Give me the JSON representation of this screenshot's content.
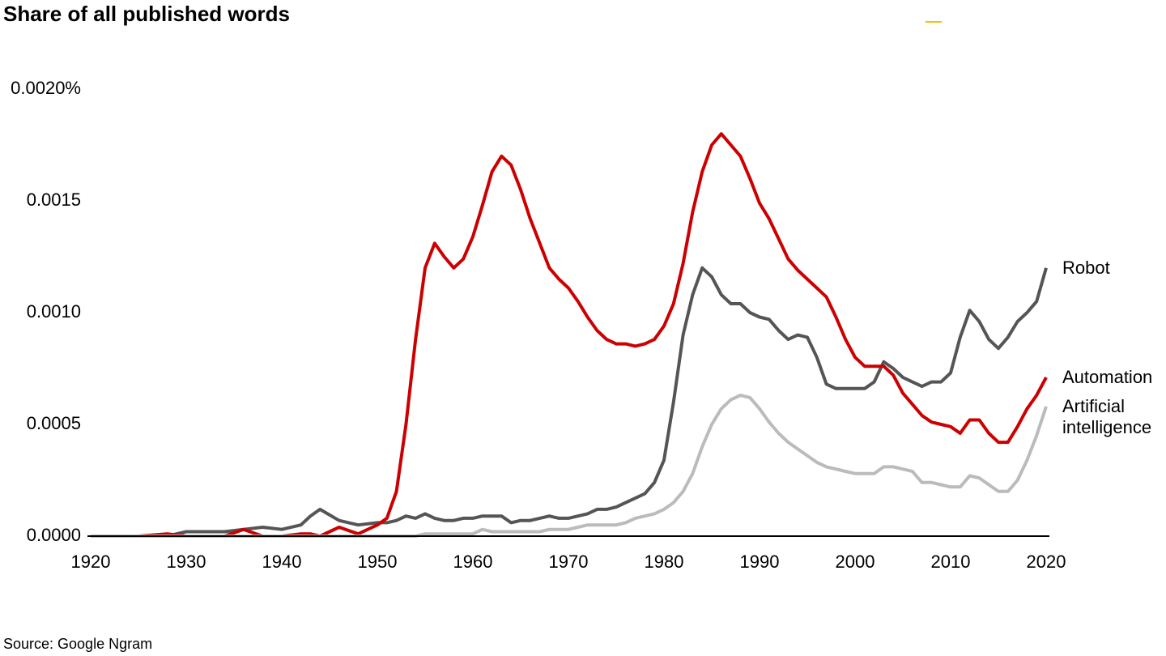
{
  "chart_data": {
    "type": "line",
    "title": "Share of all published words",
    "source": "Source: Google Ngram",
    "xlim": [
      1920,
      2020
    ],
    "ylim": [
      0,
      0.002
    ],
    "xticks": [
      1920,
      1930,
      1940,
      1950,
      1960,
      1970,
      1980,
      1990,
      2000,
      2010,
      2020
    ],
    "yticks": [
      {
        "value": 0,
        "label": "0.0000"
      },
      0.0005,
      {
        "value": 0.001,
        "label": "0.0010"
      },
      0.0015,
      {
        "value": 0.002,
        "label": "0.0020%"
      }
    ],
    "grid": false,
    "x": [
      1920,
      1925,
      1928,
      1930,
      1932,
      1934,
      1936,
      1938,
      1940,
      1942,
      1943,
      1944,
      1946,
      1948,
      1950,
      1951,
      1952,
      1953,
      1954,
      1955,
      1956,
      1957,
      1958,
      1959,
      1960,
      1961,
      1962,
      1963,
      1964,
      1965,
      1966,
      1967,
      1968,
      1969,
      1970,
      1971,
      1972,
      1973,
      1974,
      1975,
      1976,
      1977,
      1978,
      1979,
      1980,
      1981,
      1982,
      1983,
      1984,
      1985,
      1986,
      1987,
      1988,
      1989,
      1990,
      1991,
      1992,
      1993,
      1994,
      1995,
      1996,
      1997,
      1998,
      1999,
      2000,
      2001,
      2002,
      2003,
      2004,
      2005,
      2006,
      2007,
      2008,
      2009,
      2010,
      2011,
      2012,
      2013,
      2014,
      2015,
      2016,
      2017,
      2018,
      2019,
      2020
    ],
    "series": [
      {
        "name": "Robot",
        "color": "#555555",
        "values": [
          0,
          0,
          0,
          2e-05,
          2e-05,
          2e-05,
          3e-05,
          4e-05,
          3e-05,
          5e-05,
          9e-05,
          0.00012,
          7e-05,
          5e-05,
          6e-05,
          6e-05,
          7e-05,
          9e-05,
          8e-05,
          0.0001,
          8e-05,
          7e-05,
          7e-05,
          8e-05,
          8e-05,
          9e-05,
          9e-05,
          9e-05,
          6e-05,
          7e-05,
          7e-05,
          8e-05,
          9e-05,
          8e-05,
          8e-05,
          9e-05,
          0.0001,
          0.00012,
          0.00012,
          0.00013,
          0.00015,
          0.00017,
          0.00019,
          0.00024,
          0.00034,
          0.0006,
          0.0009,
          0.00108,
          0.0012,
          0.00116,
          0.00108,
          0.00104,
          0.00104,
          0.001,
          0.00098,
          0.00097,
          0.00092,
          0.00088,
          0.0009,
          0.00089,
          0.0008,
          0.00068,
          0.00066,
          0.00066,
          0.00066,
          0.00066,
          0.00069,
          0.00078,
          0.00075,
          0.00071,
          0.00069,
          0.00067,
          0.00069,
          0.00069,
          0.00073,
          0.00089,
          0.00101,
          0.00096,
          0.00088,
          0.00084,
          0.00089,
          0.00096,
          0.001,
          0.00105,
          0.0012
        ]
      },
      {
        "name": "Automation",
        "color": "#cc0000",
        "values": [
          0,
          0,
          1e-05,
          0,
          0,
          0,
          3e-05,
          0,
          0,
          1e-05,
          1e-05,
          0,
          4e-05,
          1e-05,
          5e-05,
          8e-05,
          0.0002,
          0.0005,
          0.00088,
          0.0012,
          0.00131,
          0.00125,
          0.0012,
          0.00124,
          0.00134,
          0.00148,
          0.00163,
          0.0017,
          0.00166,
          0.00155,
          0.00142,
          0.00131,
          0.0012,
          0.00115,
          0.00111,
          0.00105,
          0.00098,
          0.00092,
          0.00088,
          0.00086,
          0.00086,
          0.00085,
          0.00086,
          0.00088,
          0.00094,
          0.00104,
          0.00122,
          0.00145,
          0.00163,
          0.00175,
          0.0018,
          0.00175,
          0.0017,
          0.0016,
          0.00149,
          0.00142,
          0.00133,
          0.00124,
          0.00119,
          0.00115,
          0.00111,
          0.00107,
          0.00098,
          0.00088,
          0.0008,
          0.00076,
          0.00076,
          0.00076,
          0.00072,
          0.00064,
          0.00059,
          0.00054,
          0.00051,
          0.0005,
          0.00049,
          0.00046,
          0.00052,
          0.00052,
          0.00046,
          0.00042,
          0.00042,
          0.00049,
          0.00057,
          0.00063,
          0.00071
        ]
      },
      {
        "name": "Artificial intelligence",
        "color": "#bbbbbb",
        "values": [
          0,
          0,
          0,
          0,
          0,
          0,
          0,
          0,
          0,
          0,
          0,
          0,
          0,
          0,
          0,
          0,
          0,
          0,
          0,
          1e-05,
          1e-05,
          1e-05,
          1e-05,
          1e-05,
          1e-05,
          3e-05,
          2e-05,
          2e-05,
          2e-05,
          2e-05,
          2e-05,
          2e-05,
          3e-05,
          3e-05,
          3e-05,
          4e-05,
          5e-05,
          5e-05,
          5e-05,
          5e-05,
          6e-05,
          8e-05,
          9e-05,
          0.0001,
          0.00012,
          0.00015,
          0.0002,
          0.00028,
          0.0004,
          0.0005,
          0.00057,
          0.00061,
          0.00063,
          0.00062,
          0.00057,
          0.00051,
          0.00046,
          0.00042,
          0.00039,
          0.00036,
          0.00033,
          0.00031,
          0.0003,
          0.00029,
          0.00028,
          0.00028,
          0.00028,
          0.00031,
          0.00031,
          0.0003,
          0.00029,
          0.00024,
          0.00024,
          0.00023,
          0.00022,
          0.00022,
          0.00027,
          0.00026,
          0.00023,
          0.0002,
          0.0002,
          0.00025,
          0.00034,
          0.00045,
          0.00058
        ]
      }
    ]
  }
}
